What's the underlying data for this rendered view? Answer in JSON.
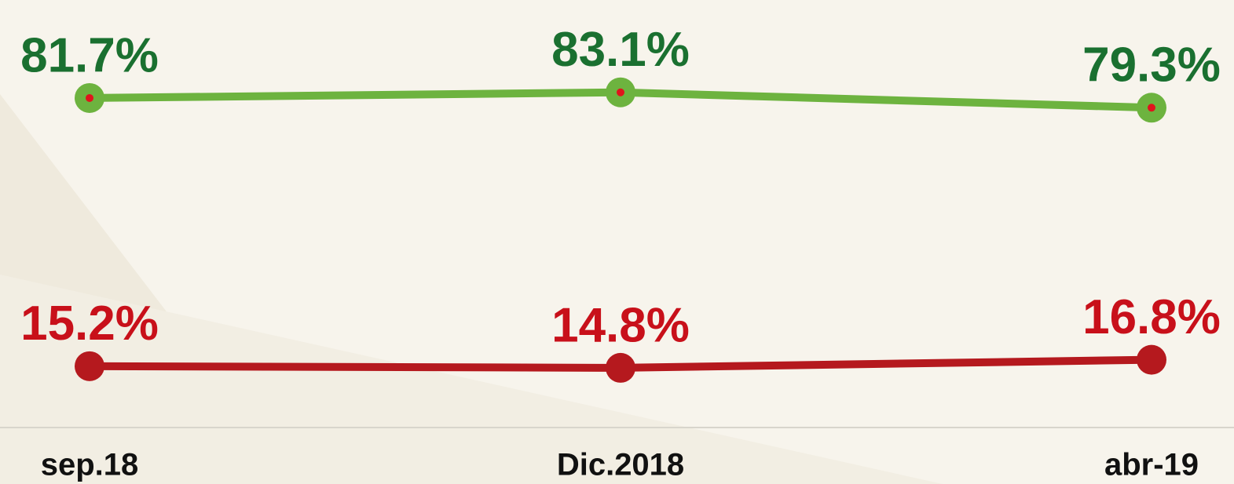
{
  "chart_data": {
    "type": "line",
    "categories": [
      "sep.18",
      "Dic.2018",
      "abr-19"
    ],
    "series": [
      {
        "color": "#6db33f",
        "label_color": "#1a7030",
        "values": [
          81.7,
          83.1,
          79.3
        ],
        "value_labels": [
          "81.7%",
          "83.1%",
          "79.3%"
        ]
      },
      {
        "color": "#b5191e",
        "label_color": "#c8101a",
        "values": [
          15.2,
          14.8,
          16.8
        ],
        "value_labels": [
          "15.2%",
          "14.8%",
          "16.8%"
        ]
      }
    ],
    "ylim": [
      0,
      106
    ]
  }
}
